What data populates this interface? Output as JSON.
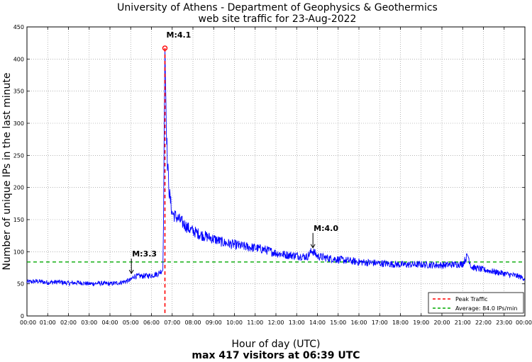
{
  "chart_data": {
    "type": "line",
    "title": "University of Athens - Department of Geophysics & Geothermics",
    "subtitle": "web site traffic for 23-Aug-2022",
    "xlabel": "Hour of day (UTC)",
    "caption": "max 417 visitors at 06:39 UTC",
    "ylabel": "Number of unique IPs in the last minute",
    "xlim_minutes": [
      0,
      1440
    ],
    "ylim": [
      0,
      450
    ],
    "yticks": [
      0,
      50,
      100,
      150,
      200,
      250,
      300,
      350,
      400,
      450
    ],
    "xtick_labels": [
      "00:00",
      "01:00",
      "02:00",
      "03:00",
      "04:00",
      "05:00",
      "06:00",
      "07:00",
      "08:00",
      "09:00",
      "10:00",
      "11:00",
      "12:00",
      "13:00",
      "14:00",
      "15:00",
      "16:00",
      "17:00",
      "18:00",
      "19:00",
      "20:00",
      "21:00",
      "22:00",
      "23:00",
      "00:00"
    ],
    "grid": true,
    "series": [
      {
        "name": "",
        "color": "#0000ff",
        "keypoints_minutes": [
          [
            0,
            53
          ],
          [
            30,
            54
          ],
          [
            60,
            52
          ],
          [
            90,
            53
          ],
          [
            120,
            51
          ],
          [
            150,
            52
          ],
          [
            180,
            50
          ],
          [
            210,
            51
          ],
          [
            240,
            50
          ],
          [
            270,
            52
          ],
          [
            300,
            56
          ],
          [
            310,
            62
          ],
          [
            330,
            62
          ],
          [
            360,
            63
          ],
          [
            380,
            66
          ],
          [
            393,
            72
          ],
          [
            395,
            150
          ],
          [
            397,
            300
          ],
          [
            399,
            417
          ],
          [
            402,
            330
          ],
          [
            406,
            240
          ],
          [
            412,
            190
          ],
          [
            420,
            160
          ],
          [
            440,
            150
          ],
          [
            470,
            135
          ],
          [
            500,
            127
          ],
          [
            540,
            120
          ],
          [
            570,
            114
          ],
          [
            600,
            111
          ],
          [
            630,
            108
          ],
          [
            660,
            106
          ],
          [
            690,
            103
          ],
          [
            720,
            98
          ],
          [
            750,
            95
          ],
          [
            780,
            94
          ],
          [
            810,
            92
          ],
          [
            825,
            102
          ],
          [
            840,
            93
          ],
          [
            870,
            90
          ],
          [
            900,
            88
          ],
          [
            960,
            84
          ],
          [
            1020,
            82
          ],
          [
            1080,
            80
          ],
          [
            1140,
            80
          ],
          [
            1200,
            79
          ],
          [
            1260,
            81
          ],
          [
            1275,
            95
          ],
          [
            1285,
            76
          ],
          [
            1320,
            72
          ],
          [
            1380,
            66
          ],
          [
            1420,
            62
          ],
          [
            1440,
            58
          ]
        ]
      }
    ],
    "peak_line": {
      "name": "Peak Traffic",
      "x_minutes": 399,
      "y": 417,
      "color": "#ff0000"
    },
    "average_line": {
      "name": "Average: 84.0 IPs/min",
      "value": 84.0,
      "color": "#00aa00"
    },
    "annotations": [
      {
        "label": "M:3.3",
        "x_minutes": 302,
        "y": 65
      },
      {
        "label": "M:4.1",
        "x_minutes": 399,
        "y": 417
      },
      {
        "label": "M:4.0",
        "x_minutes": 827,
        "y": 105
      }
    ],
    "legend_position": "bottom-right"
  }
}
